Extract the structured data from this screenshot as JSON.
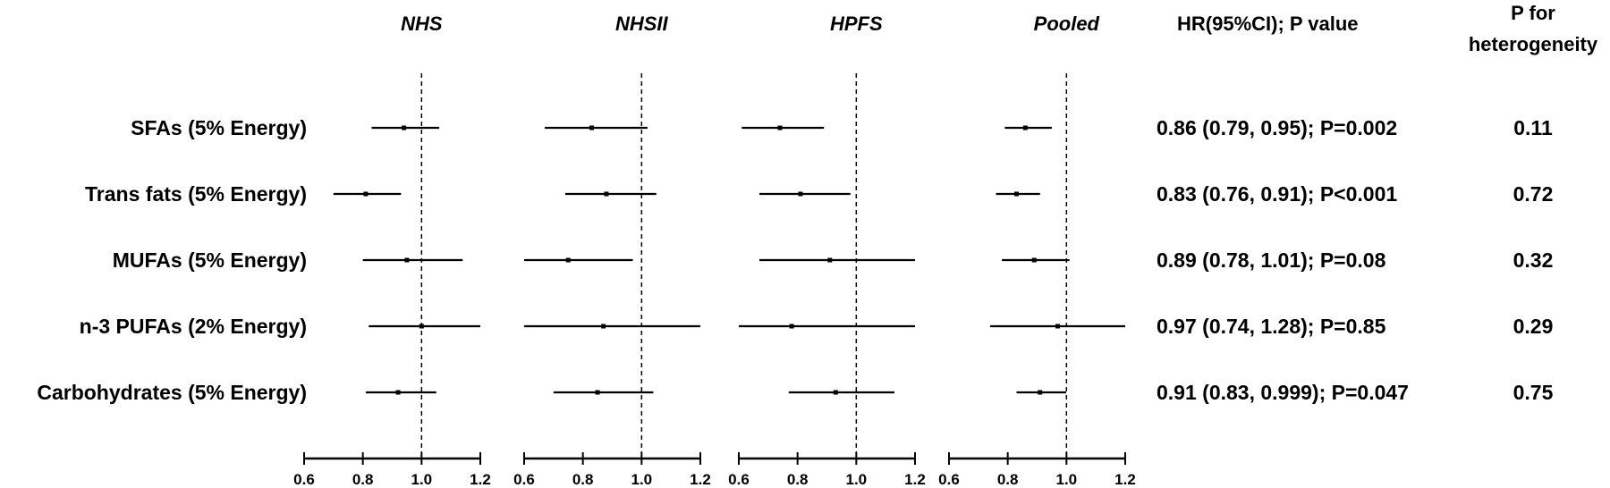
{
  "chart_data": {
    "type": "forest",
    "panels": [
      {
        "title": "NHS",
        "xlim": [
          0.6,
          1.2
        ],
        "ticks": [
          "0.6",
          "0.8",
          "1.0",
          "1.2"
        ],
        "reference_line": 1.0,
        "estimates": [
          {
            "hr": 0.94,
            "lo": 0.83,
            "hi": 1.06
          },
          {
            "hr": 0.81,
            "lo": 0.7,
            "hi": 0.93
          },
          {
            "hr": 0.95,
            "lo": 0.8,
            "hi": 1.14
          },
          {
            "hr": 1.0,
            "lo": 0.82,
            "hi": 1.2
          },
          {
            "hr": 0.92,
            "lo": 0.81,
            "hi": 1.05
          }
        ]
      },
      {
        "title": "NHSII",
        "xlim": [
          0.6,
          1.2
        ],
        "ticks": [
          "0.6",
          "0.8",
          "1.0",
          "1.2"
        ],
        "reference_line": 1.0,
        "estimates": [
          {
            "hr": 0.83,
            "lo": 0.67,
            "hi": 1.02
          },
          {
            "hr": 0.88,
            "lo": 0.74,
            "hi": 1.05
          },
          {
            "hr": 0.75,
            "lo": 0.6,
            "hi": 0.97
          },
          {
            "hr": 0.87,
            "lo": 0.6,
            "hi": 1.2
          },
          {
            "hr": 0.85,
            "lo": 0.7,
            "hi": 1.04
          }
        ]
      },
      {
        "title": "HPFS",
        "xlim": [
          0.6,
          1.2
        ],
        "ticks": [
          "0.6",
          "0.8",
          "1.0",
          "1.2"
        ],
        "reference_line": 1.0,
        "estimates": [
          {
            "hr": 0.74,
            "lo": 0.61,
            "hi": 0.89
          },
          {
            "hr": 0.81,
            "lo": 0.67,
            "hi": 0.98
          },
          {
            "hr": 0.91,
            "lo": 0.67,
            "hi": 1.2
          },
          {
            "hr": 0.78,
            "lo": 0.6,
            "hi": 1.2
          },
          {
            "hr": 0.93,
            "lo": 0.77,
            "hi": 1.13
          }
        ]
      },
      {
        "title": "Pooled",
        "xlim": [
          0.6,
          1.2
        ],
        "ticks": [
          "0.6",
          "0.8",
          "1.0",
          "1.2"
        ],
        "reference_line": 1.0,
        "estimates": [
          {
            "hr": 0.86,
            "lo": 0.79,
            "hi": 0.95
          },
          {
            "hr": 0.83,
            "lo": 0.76,
            "hi": 0.91
          },
          {
            "hr": 0.89,
            "lo": 0.78,
            "hi": 1.01
          },
          {
            "hr": 0.97,
            "lo": 0.74,
            "hi": 1.28
          },
          {
            "hr": 0.91,
            "lo": 0.83,
            "hi": 0.999
          }
        ]
      }
    ],
    "rows": [
      "SFAs (5% Energy)",
      "Trans fats (5% Energy)",
      "MUFAs (5% Energy)",
      "n-3 PUFAs (2% Energy)",
      "Carbohydrates (5% Energy)"
    ],
    "hr_column": {
      "header": "HR(95%CI);  P value",
      "values": [
        "0.86 (0.79,  0.95);  P=0.002",
        "0.83 (0.76,  0.91);  P<0.001",
        "0.89 (0.78,  1.01);  P=0.08",
        "0.97 (0.74,  1.28);  P=0.85",
        "0.91 (0.83,  0.999);  P=0.047"
      ]
    },
    "het_column": {
      "header_line1": "P for",
      "header_line2": "heterogeneity",
      "values": [
        "0.11",
        "0.72",
        "0.32",
        "0.29",
        "0.75"
      ]
    },
    "colors": {
      "ink": "#000000",
      "background": "#ffffff"
    }
  }
}
